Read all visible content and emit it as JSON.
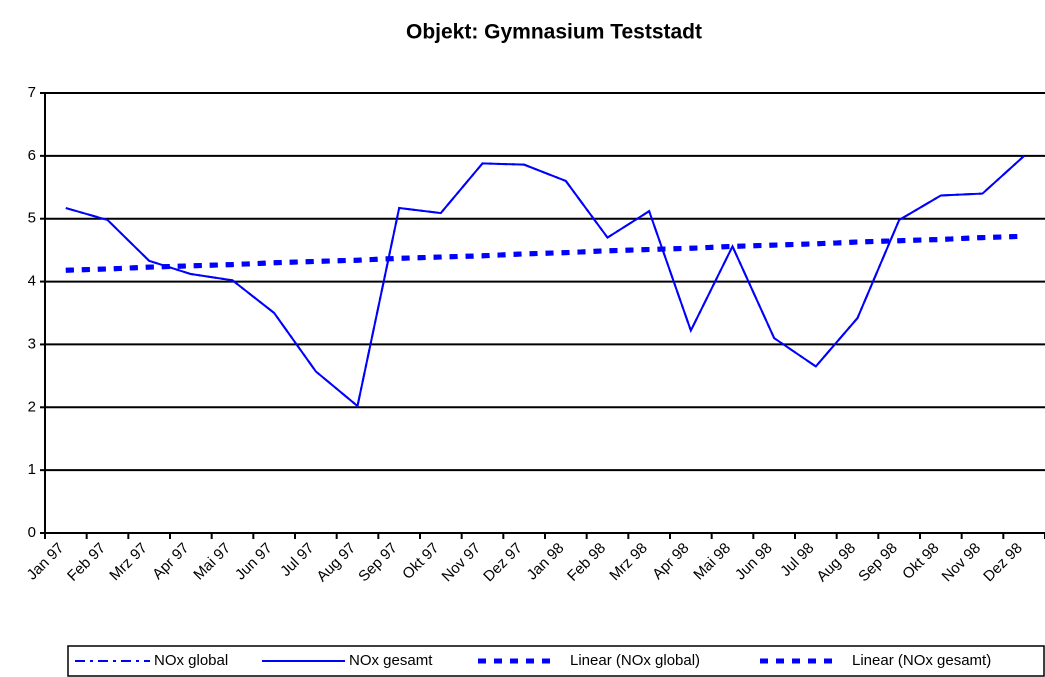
{
  "chart_data": {
    "type": "line",
    "title": "Objekt: Gymnasium Teststadt",
    "categories": [
      "Jan 97",
      "Feb 97",
      "Mrz 97",
      "Apr 97",
      "Mai 97",
      "Jun 97",
      "Jul 97",
      "Aug 97",
      "Sep 97",
      "Okt 97",
      "Nov 97",
      "Dez 97",
      "Jan 98",
      "Feb 98",
      "Mrz 98",
      "Apr 98",
      "Mai 98",
      "Jun 98",
      "Jul 98",
      "Aug 98",
      "Sep 98",
      "Okt 98",
      "Nov 98",
      "Dez 98"
    ],
    "series": [
      {
        "name": "NOx global",
        "color": "#0000ff",
        "style": "dashdot",
        "values": [
          5.17,
          4.98,
          4.33,
          4.12,
          4.02,
          3.5,
          2.57,
          2.02,
          5.17,
          5.09,
          5.88,
          5.86,
          5.6,
          4.7,
          5.12,
          3.22,
          4.56,
          3.1,
          2.65,
          3.42,
          4.98,
          5.37,
          5.4,
          6.0
        ]
      },
      {
        "name": "NOx gesamt",
        "color": "#0000ff",
        "style": "solid",
        "values": [
          5.17,
          4.98,
          4.33,
          4.12,
          4.02,
          3.5,
          2.57,
          2.02,
          5.17,
          5.09,
          5.88,
          5.86,
          5.6,
          4.7,
          5.12,
          3.22,
          4.56,
          3.1,
          2.65,
          3.42,
          4.98,
          5.37,
          5.4,
          6.0
        ]
      },
      {
        "name": "Linear (NOx global)",
        "color": "#0000ff",
        "style": "dashed",
        "values": [
          4.18,
          4.2,
          4.23,
          4.25,
          4.27,
          4.3,
          4.32,
          4.34,
          4.37,
          4.39,
          4.41,
          4.44,
          4.46,
          4.49,
          4.51,
          4.53,
          4.56,
          4.58,
          4.6,
          4.63,
          4.65,
          4.67,
          4.7,
          4.72
        ]
      },
      {
        "name": "Linear (NOx gesamt)",
        "color": "#0000ff",
        "style": "dashed",
        "values": [
          4.18,
          4.2,
          4.23,
          4.25,
          4.27,
          4.3,
          4.32,
          4.34,
          4.37,
          4.39,
          4.41,
          4.44,
          4.46,
          4.49,
          4.51,
          4.53,
          4.56,
          4.58,
          4.6,
          4.63,
          4.65,
          4.67,
          4.7,
          4.72
        ]
      }
    ],
    "ylim": [
      0,
      7
    ],
    "yticks": [
      0,
      1,
      2,
      3,
      4,
      5,
      6,
      7
    ],
    "grid": true,
    "legend": "bottom"
  }
}
